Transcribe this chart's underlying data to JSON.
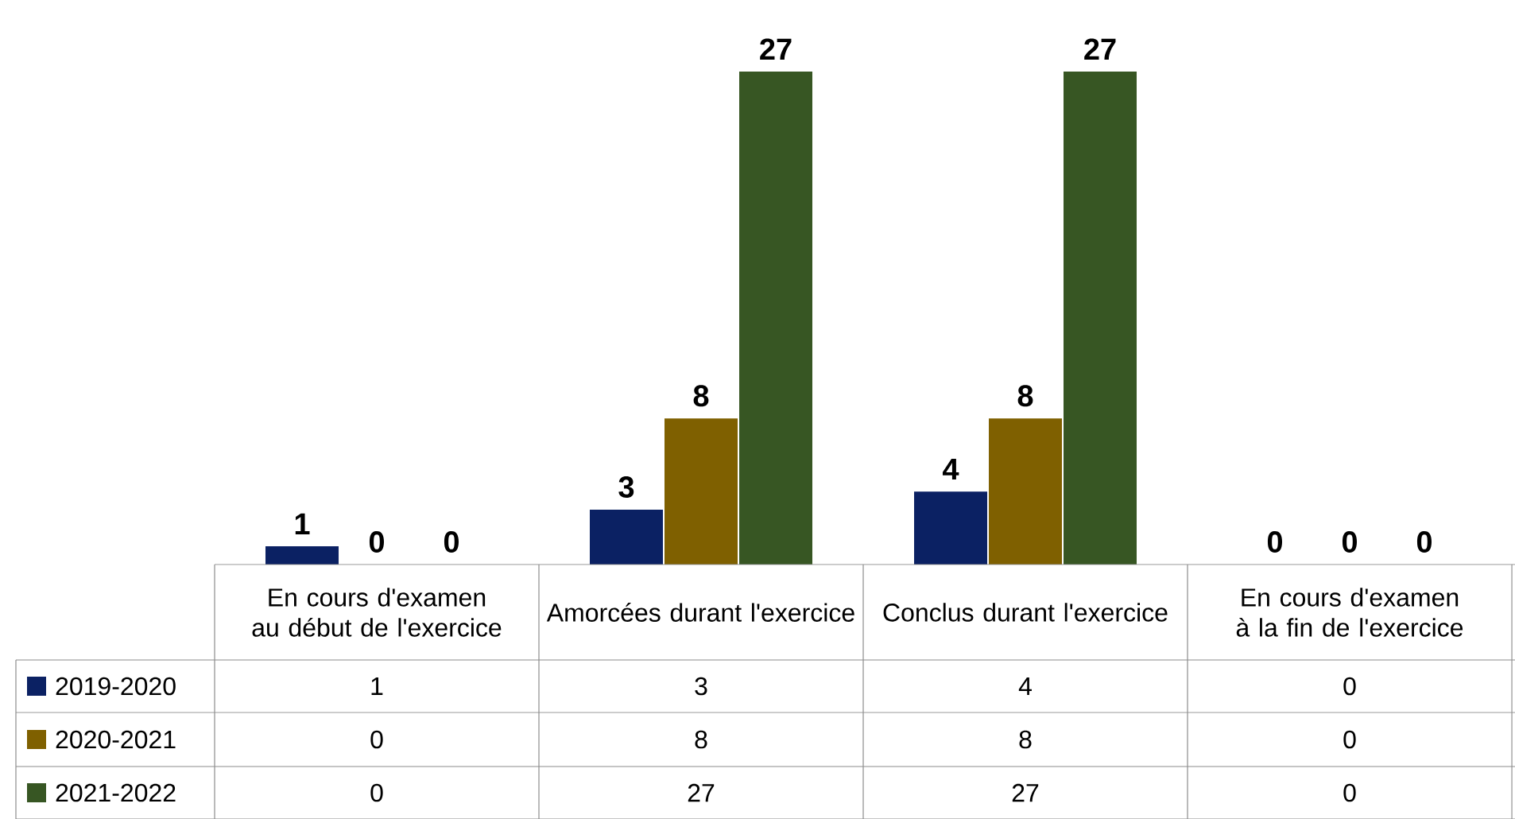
{
  "chart_data": {
    "type": "bar",
    "categories": [
      "En cours d'examen au début de l'exercice",
      "Amorcées durant l'exercice",
      "Conclus durant l'exercice",
      "En cours d'examen à la fin de l'exercice"
    ],
    "series": [
      {
        "name": "2019-2020",
        "color": "#0b2163",
        "values": [
          1,
          3,
          4,
          0
        ],
        "value_labels": [
          "1",
          "3",
          "4",
          "0"
        ]
      },
      {
        "name": "2020-2021",
        "color": "#7f6000",
        "values": [
          0,
          8,
          8,
          0
        ],
        "value_labels": [
          "0",
          "8",
          "8",
          "0"
        ]
      },
      {
        "name": "2021-2022",
        "color": "#375623",
        "values": [
          0,
          27,
          27,
          0
        ],
        "value_labels": [
          "0",
          "27",
          "27",
          "0"
        ]
      }
    ],
    "data_labels": true,
    "legend": "left"
  }
}
